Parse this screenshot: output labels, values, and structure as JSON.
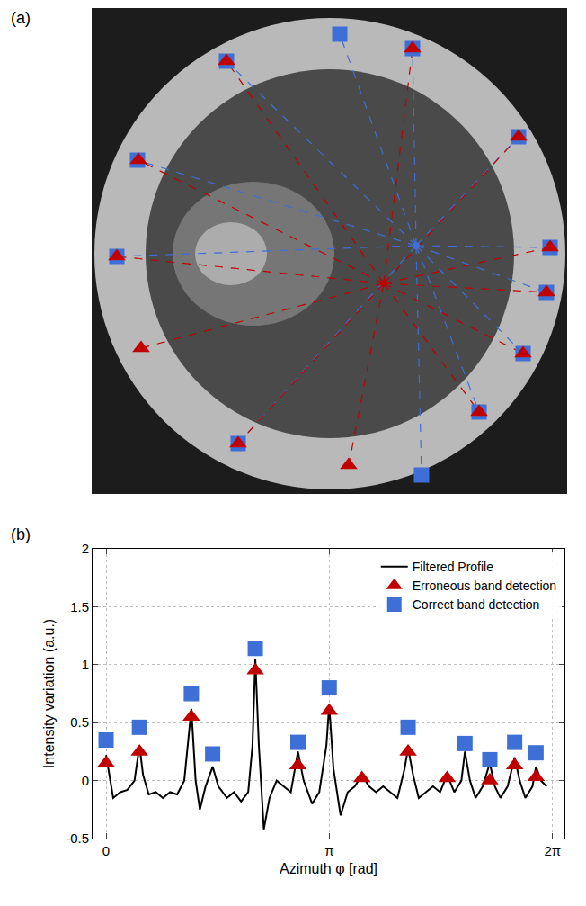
{
  "chart_data": [
    {
      "type": "scatter",
      "annotations": [
        "(a)"
      ],
      "xlim": [
        103,
        630
      ],
      "ylim": [
        548,
        10
      ],
      "tick_labels": false,
      "grid": false,
      "series": [
        {
          "color": "#3d6fd6",
          "marker": "square",
          "line_style": "dashed",
          "center": [
            463,
            273
          ],
          "x": [
            378,
            459,
            577,
            612,
            608,
            582,
            533,
            469,
            265,
            130,
            153,
            252
          ],
          "y": [
            38,
            54,
            152,
            275,
            325,
            393,
            458,
            528,
            493,
            285,
            178,
            68
          ]
        },
        {
          "color": "#c00000",
          "marker": "triangle",
          "line_style": "dashed",
          "center": [
            427,
            315
          ],
          "x": [
            252,
            459,
            577,
            154,
            612,
            130,
            608,
            157,
            582,
            533,
            265,
            388
          ],
          "y": [
            68,
            54,
            152,
            178,
            275,
            285,
            325,
            387,
            393,
            458,
            493,
            517
          ]
        }
      ]
    },
    {
      "type": "line",
      "annotations": [
        "(b)"
      ],
      "x_label": "Azimuth φ [rad]",
      "y_label": "Intensity variation (a.u.)",
      "xlim": [
        -0.19,
        6.45
      ],
      "ylim": [
        -0.5,
        2
      ],
      "xticks": [
        0,
        {
          "value": 3.14159,
          "label": "π"
        },
        {
          "value": 6.28319,
          "label": "2π"
        }
      ],
      "yticks": [
        -0.5,
        0,
        0.5,
        1,
        1.5,
        2
      ],
      "grid": true,
      "legend": "top-right",
      "series": [
        {
          "name": "Filtered Profile",
          "type": "line",
          "color": "#000000",
          "line_style": "solid",
          "x": [
            0,
            0.05,
            0.1,
            0.2,
            0.3,
            0.4,
            0.47,
            0.52,
            0.6,
            0.7,
            0.8,
            0.9,
            1.0,
            1.1,
            1.2,
            1.26,
            1.32,
            1.4,
            1.5,
            1.58,
            1.7,
            1.8,
            1.9,
            2.0,
            2.06,
            2.1,
            2.15,
            2.22,
            2.3,
            2.4,
            2.5,
            2.6,
            2.7,
            2.78,
            2.9,
            3.0,
            3.1,
            3.14,
            3.2,
            3.3,
            3.4,
            3.5,
            3.6,
            3.7,
            3.8,
            3.9,
            4.0,
            4.1,
            4.2,
            4.25,
            4.32,
            4.4,
            4.5,
            4.6,
            4.7,
            4.8,
            4.9,
            5.0,
            5.05,
            5.12,
            5.2,
            5.3,
            5.4,
            5.47,
            5.55,
            5.65,
            5.75,
            5.82,
            5.9,
            6.0,
            6.05,
            6.12,
            6.2
          ],
          "values": [
            0.22,
            0.05,
            -0.15,
            -0.1,
            -0.08,
            0.0,
            0.3,
            0.05,
            -0.12,
            -0.1,
            -0.15,
            -0.1,
            -0.12,
            0.0,
            0.62,
            0.0,
            -0.25,
            -0.05,
            0.12,
            -0.05,
            -0.15,
            -0.1,
            -0.18,
            -0.1,
            0.3,
            1.05,
            0.3,
            -0.42,
            -0.15,
            0.0,
            -0.05,
            -0.1,
            0.25,
            0.0,
            -0.2,
            -0.1,
            0.3,
            0.65,
            0.1,
            -0.3,
            -0.1,
            -0.05,
            0.05,
            -0.05,
            -0.1,
            -0.05,
            -0.1,
            -0.15,
            0.1,
            0.28,
            0.05,
            -0.15,
            -0.1,
            -0.05,
            -0.1,
            0.05,
            -0.1,
            0.0,
            0.25,
            0.0,
            -0.15,
            -0.05,
            0.15,
            -0.05,
            -0.15,
            -0.05,
            0.2,
            0.0,
            -0.15,
            -0.05,
            0.12,
            0.0,
            -0.05
          ]
        },
        {
          "name": "Erroneous band detection",
          "type": "scatter",
          "marker": "triangle",
          "color": "#c00000",
          "x": [
            0,
            0.47,
            1.2,
            2.1,
            2.7,
            3.14,
            3.6,
            4.25,
            4.8,
            5.4,
            5.75,
            6.05
          ],
          "values": [
            0.15,
            0.25,
            0.55,
            0.95,
            0.13,
            0.6,
            0.02,
            0.25,
            0.02,
            0.0,
            0.13,
            0.03
          ]
        },
        {
          "name": "Correct band detection",
          "type": "scatter",
          "marker": "square",
          "color": "#3d6fd6",
          "x": [
            0,
            0.47,
            1.2,
            1.5,
            2.1,
            2.7,
            3.14,
            4.25,
            5.05,
            5.4,
            5.75,
            6.05
          ],
          "values": [
            0.35,
            0.46,
            0.75,
            0.23,
            1.14,
            0.33,
            0.8,
            0.46,
            0.32,
            0.18,
            0.33,
            0.24
          ]
        }
      ]
    }
  ]
}
